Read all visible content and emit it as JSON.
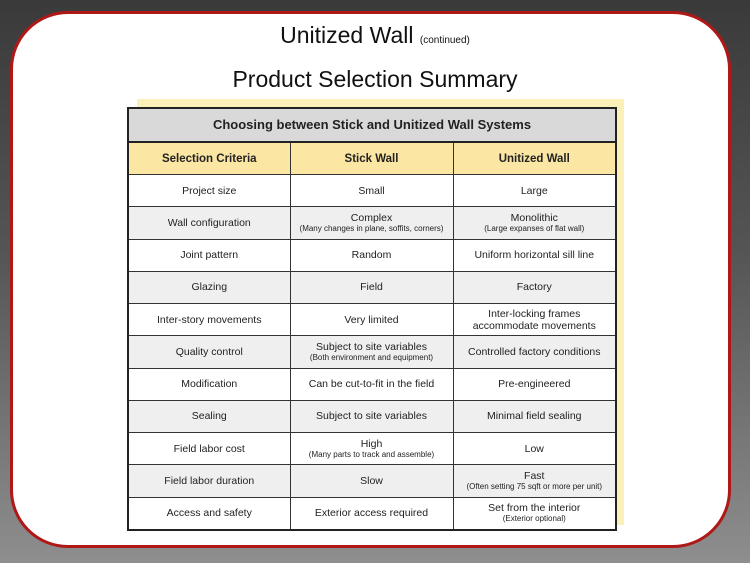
{
  "title": "Unitized Wall",
  "title_suffix": "(continued)",
  "subtitle": "Product Selection Summary",
  "table": {
    "caption": "Choosing between Stick and Unitized Wall Systems",
    "headers": [
      "Selection Criteria",
      "Stick Wall",
      "Unitized Wall"
    ],
    "rows": [
      {
        "criteria": "Project size",
        "stick": "Small",
        "stick_note": "",
        "unitized": "Large",
        "unitized_note": ""
      },
      {
        "criteria": "Wall configuration",
        "stick": "Complex",
        "stick_note": "(Many changes in plane, soffits, corners)",
        "unitized": "Monolithic",
        "unitized_note": "(Large expanses of flat wall)"
      },
      {
        "criteria": "Joint pattern",
        "stick": "Random",
        "stick_note": "",
        "unitized": "Uniform horizontal sill line",
        "unitized_note": ""
      },
      {
        "criteria": "Glazing",
        "stick": "Field",
        "stick_note": "",
        "unitized": "Factory",
        "unitized_note": ""
      },
      {
        "criteria": "Inter-story movements",
        "stick": "Very limited",
        "stick_note": "",
        "unitized": "Inter-locking frames accommodate movements",
        "unitized_note": ""
      },
      {
        "criteria": "Quality control",
        "stick": "Subject to site variables",
        "stick_note": "(Both environment and equipment)",
        "unitized": "Controlled factory conditions",
        "unitized_note": ""
      },
      {
        "criteria": "Modification",
        "stick": "Can be cut-to-fit in the field",
        "stick_note": "",
        "unitized": "Pre-engineered",
        "unitized_note": ""
      },
      {
        "criteria": "Sealing",
        "stick": "Subject to site variables",
        "stick_note": "",
        "unitized": "Minimal field sealing",
        "unitized_note": ""
      },
      {
        "criteria": "Field labor cost",
        "stick": "High",
        "stick_note": "(Many parts to track and assemble)",
        "unitized": "Low",
        "unitized_note": ""
      },
      {
        "criteria": "Field labor duration",
        "stick": "Slow",
        "stick_note": "",
        "unitized": "Fast",
        "unitized_note": "(Often setting 75 sqft or more per unit)"
      },
      {
        "criteria": "Access and safety",
        "stick": "Exterior access required",
        "stick_note": "",
        "unitized": "Set from the interior",
        "unitized_note": "(Exterior optional)"
      }
    ]
  },
  "colors": {
    "frame_border": "#b01818",
    "header_fill": "#fbe6a3",
    "caption_fill": "#d9d9d9",
    "shadow_fill": "#fbf1b8"
  }
}
